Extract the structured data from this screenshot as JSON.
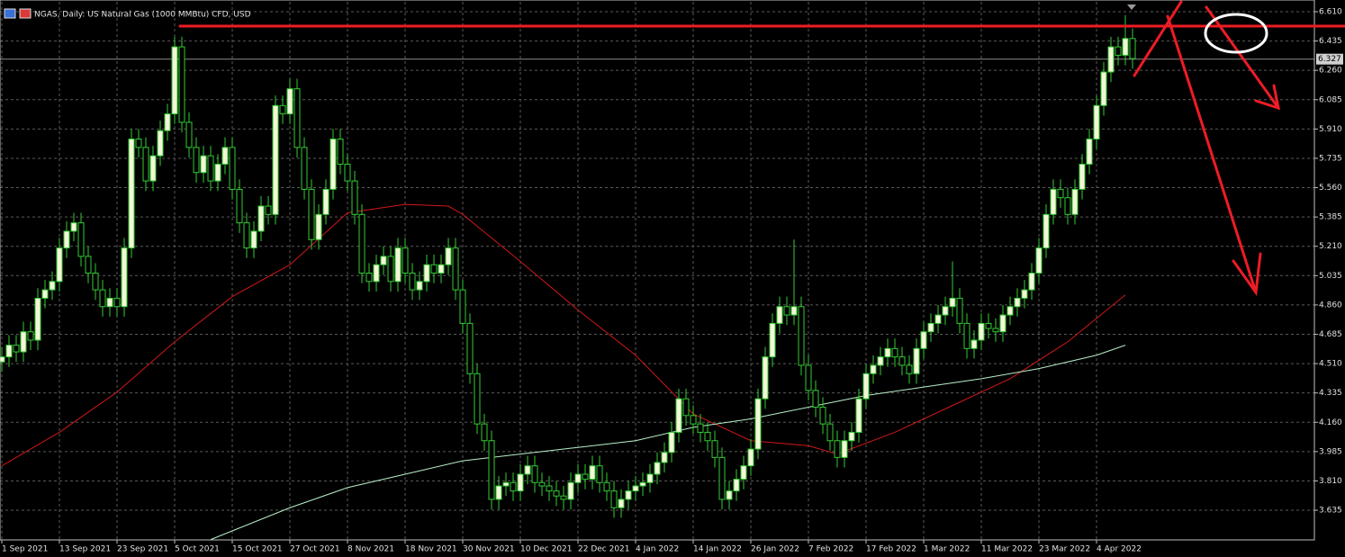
{
  "chart_data": {
    "type": "candlestick",
    "title": "NGAS, Daily: US Natural Gas (1000 MMBtu) CFD, USD",
    "up_color": "#f4f6d8",
    "down_color": "#000000",
    "wick_color": "#33cc33",
    "grid": true,
    "xlim": [
      -0.25,
      182.25
    ],
    "ylim": [
      3.458,
      6.669
    ],
    "yticks": [
      {
        "value": 6.61,
        "label": "6.610"
      },
      6.435,
      {
        "value": 6.26,
        "label": "6.260"
      },
      6.085,
      {
        "value": 5.91,
        "label": "5.910"
      },
      5.735,
      {
        "value": 5.56,
        "label": "5.560"
      },
      5.385,
      {
        "value": 5.21,
        "label": "5.210"
      },
      5.035,
      {
        "value": 4.86,
        "label": "4.860"
      },
      4.685,
      {
        "value": 4.51,
        "label": "4.510"
      },
      4.335,
      {
        "value": 4.16,
        "label": "4.160"
      },
      3.985,
      {
        "value": 3.81,
        "label": "3.810"
      },
      3.635
    ],
    "xticks": [
      {
        "value": 0,
        "label": "1 Sep 2021"
      },
      {
        "value": 8,
        "label": "13 Sep 2021"
      },
      {
        "value": 16,
        "label": "23 Sep 2021"
      },
      {
        "value": 24,
        "label": "5 Oct 2021"
      },
      {
        "value": 32,
        "label": "15 Oct 2021"
      },
      {
        "value": 40,
        "label": "27 Oct 2021"
      },
      {
        "value": 48,
        "label": "8 Nov 2021"
      },
      {
        "value": 56,
        "label": "18 Nov 2021"
      },
      {
        "value": 64,
        "label": "30 Nov 2021"
      },
      {
        "value": 72,
        "label": "10 Dec 2021"
      },
      {
        "value": 80,
        "label": "22 Dec 2021"
      },
      {
        "value": 88,
        "label": "4 Jan 2022"
      },
      {
        "value": 96,
        "label": "14 Jan 2022"
      },
      {
        "value": 104,
        "label": "26 Jan 2022"
      },
      {
        "value": 112,
        "label": "7 Feb 2022"
      },
      {
        "value": 120,
        "label": "17 Feb 2022"
      },
      {
        "value": 128,
        "label": "1 Mar 2022"
      },
      {
        "value": 136,
        "label": "11 Mar 2022"
      },
      {
        "value": 144,
        "label": "23 Mar 2022"
      },
      {
        "value": 152,
        "label": "4 Apr 2022"
      }
    ],
    "last_price": 6.327,
    "open": [
      4.52,
      4.55,
      4.62,
      4.58,
      4.7,
      4.65,
      4.9,
      4.95,
      5.0,
      5.2,
      5.3,
      5.35,
      5.15,
      5.05,
      4.95,
      4.85,
      4.9,
      4.85,
      5.2,
      5.85,
      5.8,
      5.6,
      5.75,
      5.9,
      6.0,
      6.4,
      5.95,
      5.8,
      5.65,
      5.75,
      5.6,
      5.7,
      5.8,
      5.55,
      5.35,
      5.2,
      5.3,
      5.45,
      5.4,
      6.05,
      6.0,
      6.15,
      5.8,
      5.55,
      5.25,
      5.4,
      5.55,
      5.85,
      5.7,
      5.6,
      5.4,
      5.05,
      5.0,
      5.1,
      5.15,
      5.0,
      5.2,
      5.05,
      4.95,
      5.0,
      5.1,
      5.05,
      5.1,
      5.2,
      4.95,
      4.75,
      4.45,
      4.15,
      4.05,
      3.7,
      3.78,
      3.8,
      3.75,
      3.85,
      3.9,
      3.8,
      3.78,
      3.75,
      3.72,
      3.7,
      3.8,
      3.85,
      3.82,
      3.9,
      3.8,
      3.75,
      3.65,
      3.7,
      3.75,
      3.78,
      3.8,
      3.85,
      3.92,
      3.98,
      4.1,
      4.3,
      4.2,
      4.15,
      4.1,
      4.05,
      3.95,
      3.7,
      3.75,
      3.82,
      3.9,
      4.0,
      4.3,
      4.55,
      4.75,
      4.85,
      4.8,
      4.85,
      4.5,
      4.35,
      4.25,
      4.15,
      4.05,
      3.95,
      4.05,
      4.1,
      4.3,
      4.45,
      4.5,
      4.55,
      4.6,
      4.55,
      4.5,
      4.45,
      4.6,
      4.7,
      4.75,
      4.8,
      4.85,
      4.9,
      4.75,
      4.6,
      4.65,
      4.75,
      4.72,
      4.7,
      4.8,
      4.85,
      4.9,
      4.95,
      5.05,
      5.2,
      5.4,
      5.55,
      5.5,
      5.4,
      5.55,
      5.7,
      5.85,
      6.05,
      6.25,
      6.4,
      6.35,
      6.45
    ],
    "high": [
      4.61,
      4.68,
      4.68,
      4.76,
      4.76,
      4.96,
      5.01,
      5.06,
      5.26,
      5.36,
      5.41,
      5.41,
      5.21,
      5.11,
      5.01,
      4.96,
      4.96,
      5.26,
      5.91,
      5.91,
      5.86,
      5.81,
      5.96,
      6.06,
      6.46,
      6.46,
      6.01,
      5.86,
      5.81,
      5.81,
      5.76,
      5.86,
      5.86,
      5.61,
      5.41,
      5.36,
      5.51,
      5.51,
      6.11,
      6.11,
      6.21,
      6.21,
      5.86,
      5.61,
      5.46,
      5.61,
      5.91,
      5.91,
      5.76,
      5.66,
      5.46,
      5.11,
      5.16,
      5.21,
      5.21,
      5.26,
      5.26,
      5.11,
      5.06,
      5.16,
      5.16,
      5.16,
      5.26,
      5.26,
      5.01,
      4.81,
      4.51,
      4.21,
      4.11,
      3.84,
      3.86,
      3.86,
      3.91,
      3.96,
      3.96,
      3.86,
      3.84,
      3.81,
      3.78,
      3.86,
      3.91,
      3.91,
      3.96,
      3.96,
      3.86,
      3.81,
      3.76,
      3.81,
      3.84,
      3.86,
      3.91,
      3.98,
      4.04,
      4.16,
      4.36,
      4.36,
      4.26,
      4.21,
      4.16,
      4.11,
      4.01,
      3.81,
      3.88,
      3.96,
      4.06,
      4.36,
      4.61,
      4.81,
      4.91,
      4.91,
      5.25,
      4.91,
      4.56,
      4.41,
      4.31,
      4.21,
      4.11,
      4.11,
      4.16,
      4.36,
      4.51,
      4.56,
      4.61,
      4.66,
      4.66,
      4.61,
      4.56,
      4.66,
      4.76,
      4.81,
      4.86,
      4.91,
      5.12,
      4.96,
      4.81,
      4.71,
      4.81,
      4.81,
      4.78,
      4.86,
      4.91,
      4.96,
      5.01,
      5.11,
      5.26,
      5.46,
      5.61,
      5.61,
      5.56,
      5.61,
      5.76,
      5.91,
      6.11,
      6.31,
      6.46,
      6.46,
      6.59,
      6.51
    ],
    "low": [
      4.46,
      4.49,
      4.52,
      4.52,
      4.59,
      4.59,
      4.84,
      4.89,
      4.94,
      5.14,
      5.24,
      5.09,
      4.99,
      4.89,
      4.79,
      4.79,
      4.79,
      4.79,
      5.14,
      5.74,
      5.54,
      5.54,
      5.69,
      5.84,
      5.94,
      5.89,
      5.74,
      5.59,
      5.59,
      5.54,
      5.54,
      5.64,
      5.49,
      5.29,
      5.14,
      5.14,
      5.24,
      5.34,
      5.34,
      5.94,
      5.94,
      5.74,
      5.49,
      5.19,
      5.19,
      5.34,
      5.49,
      5.64,
      5.54,
      5.34,
      4.99,
      4.94,
      4.94,
      5.04,
      4.94,
      4.94,
      4.99,
      4.89,
      4.89,
      4.94,
      4.99,
      4.99,
      5.04,
      4.89,
      4.69,
      4.39,
      4.09,
      3.99,
      3.64,
      3.64,
      3.72,
      3.69,
      3.69,
      3.79,
      3.74,
      3.72,
      3.69,
      3.66,
      3.64,
      3.64,
      3.74,
      3.76,
      3.76,
      3.74,
      3.69,
      3.59,
      3.59,
      3.64,
      3.69,
      3.72,
      3.74,
      3.79,
      3.86,
      3.92,
      4.04,
      4.14,
      4.09,
      4.04,
      3.99,
      3.89,
      3.64,
      3.64,
      3.69,
      3.76,
      3.84,
      3.94,
      4.24,
      4.49,
      4.69,
      4.74,
      4.74,
      4.44,
      4.29,
      4.19,
      4.09,
      3.99,
      3.89,
      3.89,
      3.99,
      4.04,
      4.24,
      4.39,
      4.44,
      4.49,
      4.49,
      4.44,
      4.39,
      4.39,
      4.54,
      4.64,
      4.69,
      4.74,
      4.79,
      4.69,
      4.54,
      4.54,
      4.59,
      4.66,
      4.64,
      4.64,
      4.74,
      4.79,
      4.84,
      4.89,
      4.99,
      5.14,
      5.34,
      5.44,
      5.34,
      5.34,
      5.49,
      5.64,
      5.79,
      5.99,
      6.19,
      6.29,
      6.29,
      6.27
    ],
    "close": [
      4.55,
      4.62,
      4.58,
      4.7,
      4.65,
      4.9,
      4.95,
      5.0,
      5.2,
      5.3,
      5.35,
      5.15,
      5.05,
      4.95,
      4.85,
      4.9,
      4.85,
      5.2,
      5.85,
      5.8,
      5.6,
      5.75,
      5.9,
      6.0,
      6.4,
      5.95,
      5.8,
      5.65,
      5.75,
      5.6,
      5.7,
      5.8,
      5.55,
      5.35,
      5.2,
      5.3,
      5.45,
      5.4,
      6.05,
      6.0,
      6.15,
      5.8,
      5.55,
      5.25,
      5.4,
      5.55,
      5.85,
      5.7,
      5.6,
      5.4,
      5.05,
      5.0,
      5.1,
      5.15,
      5.0,
      5.2,
      5.05,
      4.95,
      5.0,
      5.1,
      5.05,
      5.1,
      5.2,
      4.95,
      4.75,
      4.45,
      4.15,
      4.05,
      3.7,
      3.78,
      3.8,
      3.75,
      3.85,
      3.9,
      3.8,
      3.78,
      3.75,
      3.72,
      3.7,
      3.8,
      3.85,
      3.82,
      3.9,
      3.8,
      3.75,
      3.65,
      3.7,
      3.75,
      3.78,
      3.8,
      3.85,
      3.92,
      3.98,
      4.1,
      4.3,
      4.2,
      4.15,
      4.1,
      4.05,
      3.95,
      3.7,
      3.75,
      3.82,
      3.9,
      4.0,
      4.3,
      4.55,
      4.75,
      4.85,
      4.8,
      4.85,
      4.5,
      4.35,
      4.25,
      4.15,
      4.05,
      3.95,
      4.05,
      4.1,
      4.3,
      4.45,
      4.5,
      4.55,
      4.6,
      4.55,
      4.5,
      4.45,
      4.6,
      4.7,
      4.75,
      4.8,
      4.85,
      4.9,
      4.75,
      4.6,
      4.65,
      4.75,
      4.72,
      4.7,
      4.8,
      4.85,
      4.9,
      4.95,
      5.05,
      5.2,
      5.4,
      5.55,
      5.5,
      5.4,
      5.55,
      5.7,
      5.85,
      6.05,
      6.25,
      6.4,
      6.35,
      6.45,
      6.33
    ],
    "lines": [
      {
        "color": "#d01818",
        "x": [
          0,
          8,
          16,
          24,
          32,
          40,
          48,
          56,
          62,
          64,
          72,
          80,
          88,
          96,
          104,
          112,
          116,
          124,
          132,
          140,
          148,
          156
        ],
        "values": [
          3.9,
          4.1,
          4.34,
          4.64,
          4.91,
          5.1,
          5.41,
          5.46,
          5.45,
          5.4,
          5.12,
          4.83,
          4.56,
          4.21,
          4.05,
          4.02,
          3.97,
          4.1,
          4.26,
          4.42,
          4.64,
          4.92
        ]
      },
      {
        "color": "#b8f0c8",
        "x": [
          29,
          40,
          48,
          56,
          64,
          72,
          80,
          88,
          96,
          104,
          112,
          120,
          128,
          136,
          144,
          152,
          156
        ],
        "values": [
          3.46,
          3.65,
          3.77,
          3.85,
          3.93,
          3.97,
          4.01,
          4.05,
          4.13,
          4.18,
          4.25,
          4.32,
          4.37,
          4.42,
          4.48,
          4.56,
          4.62
        ]
      }
    ]
  }
}
